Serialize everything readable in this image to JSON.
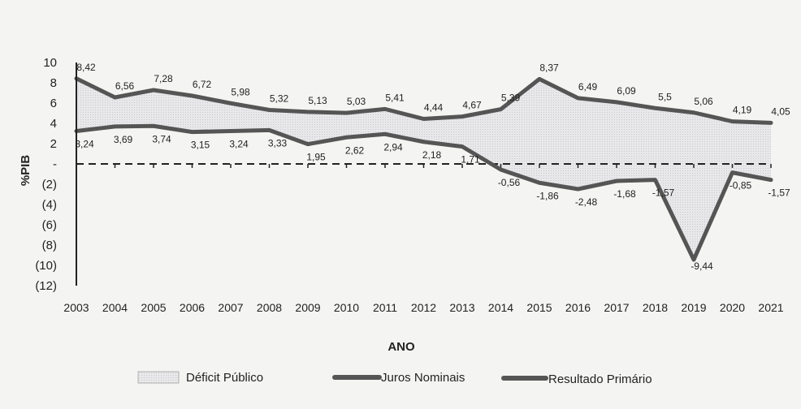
{
  "chart_data": {
    "type": "area",
    "categories": [
      "2003",
      "2004",
      "2005",
      "2006",
      "2007",
      "2008",
      "2009",
      "2010",
      "2011",
      "2012",
      "2013",
      "2014",
      "2015",
      "2016",
      "2017",
      "2018",
      "2019",
      "2020",
      "2021"
    ],
    "series": [
      {
        "name": "Juros Nominais",
        "values": [
          8.42,
          6.56,
          7.28,
          6.72,
          5.98,
          5.32,
          5.13,
          5.03,
          5.41,
          4.44,
          4.67,
          5.39,
          8.37,
          6.49,
          6.09,
          5.5,
          5.06,
          4.19,
          4.05
        ],
        "labels": [
          "8,42",
          "6,56",
          "7,28",
          "6,72",
          "5,98",
          "5,32",
          "5,13",
          "5,03",
          "5,41",
          "4,44",
          "4,67",
          "5,39",
          "8,37",
          "6,49",
          "6,09",
          "5,5",
          "5,06",
          "4,19",
          "4,05"
        ],
        "color": "#555555"
      },
      {
        "name": "Resultado Primário",
        "values": [
          3.24,
          3.69,
          3.74,
          3.15,
          3.24,
          3.33,
          1.95,
          2.62,
          2.94,
          2.18,
          1.71,
          -0.56,
          -1.86,
          -2.48,
          -1.68,
          -1.57,
          -9.44,
          -0.85,
          -1.57
        ],
        "labels": [
          "3,24",
          "3,69",
          "3,74",
          "3,15",
          "3,24",
          "3,33",
          "1,95",
          "2,62",
          "2,94",
          "2,18",
          "1,71",
          "-0,56",
          "-1,86",
          "-2,48",
          "-1,68",
          "-1,57",
          "-9,44",
          "-0,85",
          "-1,57"
        ],
        "color": "#555555"
      },
      {
        "name": "Déficit Público",
        "kind": "area-between",
        "color": "#e6e6e8"
      }
    ],
    "xlabel": "ANO",
    "ylabel": "%PIB",
    "ylim": [
      -12,
      10
    ],
    "yticks": [
      10,
      8,
      6,
      4,
      2,
      0,
      -2,
      -4,
      -6,
      -8,
      -10,
      -12
    ],
    "ytick_labels": [
      "10",
      "8",
      "6",
      "4",
      "2",
      "-",
      "(2)",
      "(4)",
      "(6)",
      "(8)",
      "(10)",
      "(12)"
    ],
    "zero_line": "dashed",
    "grid": false,
    "legend": "bottom"
  }
}
